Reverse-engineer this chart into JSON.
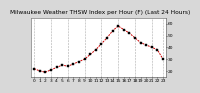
{
  "title": "Milwaukee Weather THSW Index per Hour (F) (Last 24 Hours)",
  "title_fontsize": 4.2,
  "background_color": "#d8d8d8",
  "plot_bg_color": "#ffffff",
  "line_color": "#cc0000",
  "marker_color": "#000000",
  "marker_size": 1.5,
  "line_width": 0.7,
  "hours": [
    0,
    1,
    2,
    3,
    4,
    5,
    6,
    7,
    8,
    9,
    10,
    11,
    12,
    13,
    14,
    15,
    16,
    17,
    18,
    19,
    20,
    21,
    22,
    23
  ],
  "values": [
    22,
    20,
    19,
    21,
    23,
    25,
    24,
    26,
    28,
    30,
    34,
    38,
    43,
    48,
    54,
    58,
    55,
    52,
    48,
    44,
    42,
    40,
    38,
    30
  ],
  "ylim": [
    15,
    65
  ],
  "yticks": [
    20,
    30,
    40,
    50,
    60
  ],
  "ytick_labels": [
    "20",
    "30",
    "40",
    "50",
    "60"
  ],
  "grid_color": "#aaaaaa",
  "tick_fontsize": 3.2,
  "vgrid_positions": [
    0,
    3,
    6,
    9,
    12,
    15,
    18,
    21,
    23
  ]
}
